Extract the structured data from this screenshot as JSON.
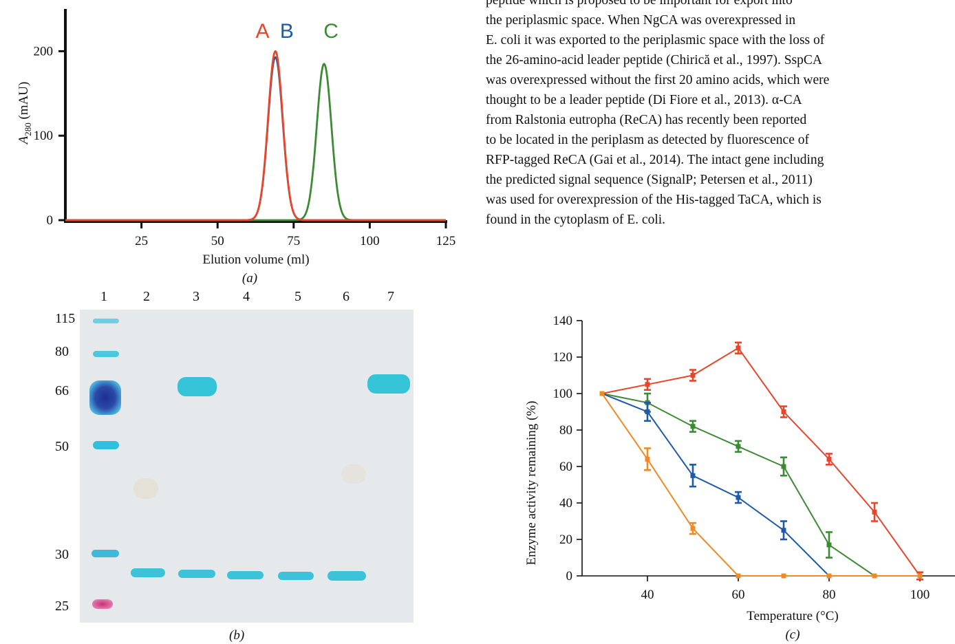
{
  "paragraph_lines": [
    "peptide which is proposed to be important for export into",
    "the periplasmic space. When NgCA was overexpressed in",
    "E. coli it was exported to the periplasmic space with the loss of",
    "the 26-amino-acid leader peptide (Chirică et al., 1997). SspCA",
    "was overexpressed without the first 20 amino acids, which were",
    "thought to be a leader peptide (Di Fiore et al., 2013). α-CA",
    "from Ralstonia eutropha (ReCA) has recently been reported",
    "to be located in the periplasm as detected by fluorescence of",
    "RFP-tagged ReCA (Gai et al., 2014). The intact gene including",
    "the predicted signal sequence (SignalP; Petersen et al., 2011)",
    "was used for overexpression of the His-tagged TaCA, which is",
    "found in the cytoplasm of E. coli."
  ],
  "panel_a_caption": "(a)",
  "panel_b_caption": "(b)",
  "panel_c_caption": "(c)",
  "gel": {
    "lane_numbers": [
      "1",
      "2",
      "3",
      "4",
      "5",
      "6",
      "7"
    ],
    "mw_markers": [
      "115",
      "80",
      "66",
      "50",
      "30",
      "25"
    ]
  },
  "colors": {
    "red": "#e8462a",
    "blue": "#1f5aa6",
    "green": "#3d8a35",
    "orange": "#f08a24",
    "gel_band": "#35c3d8",
    "gel_bg": "#e6e9ec"
  },
  "chart_data": [
    {
      "type": "line",
      "panel": "a",
      "xlabel": "Elution volume (ml)",
      "ylabel": "A280 (mAU)",
      "ylabel_main": "A",
      "ylabel_sub": "280",
      "ylabel_rest": " (mAU)",
      "xlim": [
        0,
        125
      ],
      "ylim": [
        0,
        250
      ],
      "xticks": [
        25,
        50,
        75,
        100,
        125
      ],
      "yticks": [
        0,
        100,
        200
      ],
      "peak_labels": [
        {
          "text": "A",
          "x": 62.5,
          "color": "#e8462a"
        },
        {
          "text": "B",
          "x": 70.5,
          "color": "#1f5aa6"
        },
        {
          "text": "C",
          "x": 85,
          "color": "#3d8a35"
        }
      ],
      "series": [
        {
          "color": "#1f5aa6",
          "peak_x": 69,
          "peak_y": 193,
          "width": 2.6
        },
        {
          "color": "#3d8a35",
          "peak_x": 85,
          "peak_y": 185,
          "width": 2.8
        },
        {
          "color": "#e8462a",
          "peak_x": 69,
          "peak_y": 200,
          "width": 2.8
        }
      ]
    },
    {
      "type": "line",
      "panel": "c",
      "xlabel": "Temperature (°C)",
      "ylabel": "Enzyme activity remaining (%)",
      "xlim": [
        20,
        110
      ],
      "ylim": [
        0,
        140
      ],
      "xticks": [
        40,
        60,
        80,
        100
      ],
      "yticks": [
        0,
        20,
        40,
        60,
        80,
        100,
        120,
        140
      ],
      "series": [
        {
          "color": "#e8462a",
          "x": [
            30,
            40,
            50,
            60,
            70,
            80,
            90,
            100
          ],
          "y": [
            100,
            105,
            110,
            125,
            90,
            64,
            35,
            0
          ],
          "err": [
            0,
            3,
            3,
            3,
            3,
            3,
            5,
            2
          ]
        },
        {
          "color": "#3d8a35",
          "x": [
            30,
            40,
            50,
            60,
            70,
            80,
            90
          ],
          "y": [
            100,
            95,
            82,
            71,
            60,
            17,
            0
          ],
          "err": [
            0,
            5,
            3,
            3,
            5,
            7,
            0
          ]
        },
        {
          "color": "#1f5aa6",
          "x": [
            30,
            40,
            50,
            60,
            70,
            80
          ],
          "y": [
            100,
            90,
            55,
            43,
            25,
            0
          ],
          "err": [
            0,
            5,
            6,
            3,
            5,
            0
          ]
        },
        {
          "color": "#f08a24",
          "x": [
            30,
            40,
            50,
            60,
            70,
            80,
            90,
            100
          ],
          "y": [
            100,
            64,
            26,
            0,
            0,
            0,
            0,
            0
          ],
          "err": [
            0,
            6,
            3,
            0,
            0,
            0,
            0,
            0
          ]
        }
      ]
    }
  ]
}
